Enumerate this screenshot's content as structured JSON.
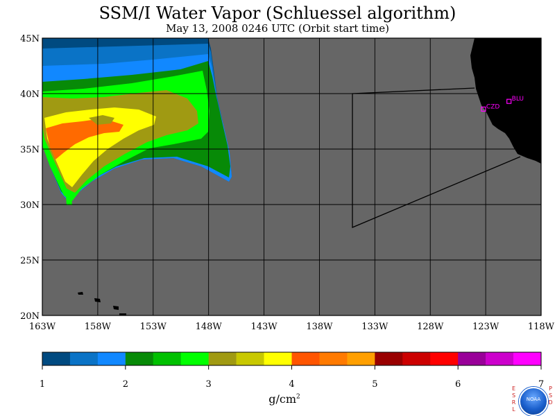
{
  "title": "SSM/I Water Vapor (Schluessel algorithm)",
  "subtitle": "May 13, 2008  0246 UTC  (Orbit start time)",
  "map": {
    "lat_labels": [
      "45N",
      "40N",
      "35N",
      "30N",
      "25N",
      "20N"
    ],
    "lon_labels": [
      "163W",
      "158W",
      "153W",
      "148W",
      "143W",
      "138W",
      "133W",
      "128W",
      "123W",
      "118W"
    ],
    "lat_range": [
      20,
      45
    ],
    "lon_range": [
      -163,
      -118
    ],
    "colors": {
      "ocean": "#666666",
      "land": "#000000",
      "grid": "#000000",
      "station": "#ff00ff"
    },
    "stations": [
      {
        "label": "CZD",
        "lat": 38.6,
        "lon": -123.2
      },
      {
        "label": "BLU",
        "lat": 39.3,
        "lon": -120.9
      }
    ],
    "swath_fields": [
      {
        "level": "1.0-1.25",
        "color": "#004a80"
      },
      {
        "level": "1.25-1.5",
        "color": "#0a73c6"
      },
      {
        "level": "1.5-2.0",
        "color": "#1188ff"
      },
      {
        "level": "2.0-2.5",
        "color": "#078a07"
      },
      {
        "level": "2.5-3.0",
        "color": "#00ff00"
      },
      {
        "level": "3.0-3.5",
        "color": "#a09a12"
      },
      {
        "level": "3.5-4.0",
        "color": "#ffff00"
      },
      {
        "level": "4.0-4.5",
        "color": "#ff6a00"
      }
    ]
  },
  "colorbar": {
    "tick_labels": [
      "1",
      "2",
      "3",
      "4",
      "5",
      "6",
      "7"
    ],
    "units_base": "g/cm",
    "units_exp": "2",
    "colors": [
      "#004a80",
      "#0a73c6",
      "#1188ff",
      "#078a07",
      "#00c000",
      "#00ff00",
      "#a09a12",
      "#c8c800",
      "#ffff00",
      "#ff5500",
      "#ff7a00",
      "#ff9f00",
      "#990000",
      "#cc0000",
      "#ff0000",
      "#990099",
      "#cc00cc",
      "#ff00ff"
    ]
  },
  "credit": {
    "left_letters": "E S R L",
    "right_letters": "P S D",
    "logo_text": "NOAA"
  }
}
